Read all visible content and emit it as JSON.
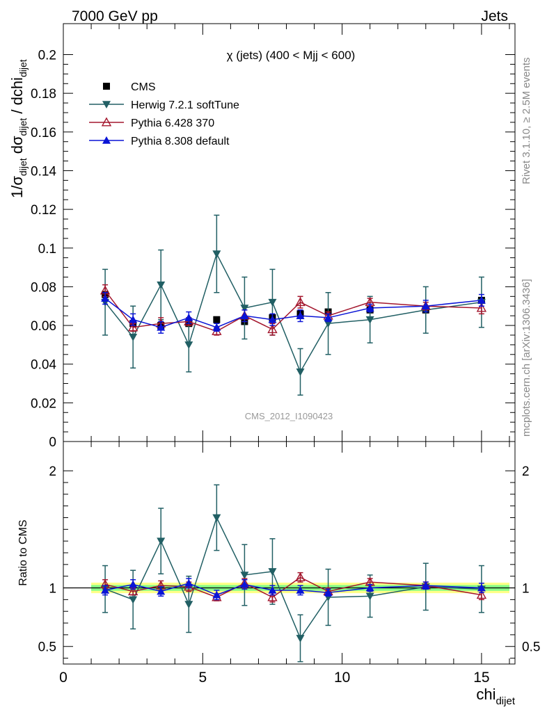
{
  "header": {
    "left": "7000 GeV pp",
    "right": "Jets"
  },
  "side_labels": {
    "top": "Rivet 3.1.10, ≥ 2.5M events",
    "bottom": "mcplots.cern.ch [arXiv:1306.3436]"
  },
  "chart_data": [
    {
      "type": "scatter",
      "title": "χ (jets) (400 < Mjj <  600)",
      "watermark": "CMS_2012_I1090423",
      "ylabel": {
        "prefix": "1/σ",
        "sub1": "dijet",
        "mid": " dσ",
        "sub2": "dijet",
        "suffix": " / dchi",
        "sub3": "dijet"
      },
      "xlim": [
        0,
        16.2
      ],
      "ylim": [
        0,
        0.216
      ],
      "yticks": [
        {
          "v": 0,
          "label": "0"
        },
        {
          "v": 0.02,
          "label": "0.02"
        },
        {
          "v": 0.04,
          "label": "0.04"
        },
        {
          "v": 0.06,
          "label": "0.06"
        },
        {
          "v": 0.08,
          "label": "0.08"
        },
        {
          "v": 0.1,
          "label": "0.1"
        },
        {
          "v": 0.12,
          "label": "0.12"
        },
        {
          "v": 0.14,
          "label": "0.14"
        },
        {
          "v": 0.16,
          "label": "0.16"
        },
        {
          "v": 0.18,
          "label": "0.18"
        },
        {
          "v": 0.2,
          "label": "0.2"
        }
      ],
      "x": [
        1.5,
        2.5,
        3.5,
        4.5,
        5.5,
        6.5,
        7.5,
        8.5,
        9.5,
        11,
        13,
        15
      ],
      "series": [
        {
          "name": "CMS",
          "marker": "square-filled",
          "color": "#000000",
          "line": false,
          "values": [
            0.076,
            0.061,
            0.06,
            0.061,
            0.063,
            0.062,
            0.064,
            0.066,
            0.067,
            0.068,
            0.068,
            0.073
          ],
          "err": [
            0,
            0,
            0,
            0,
            0,
            0,
            0,
            0,
            0,
            0,
            0,
            0
          ]
        },
        {
          "name": "Herwig 7.2.1 softTune",
          "marker": "triangle-down-filled",
          "color": "#215f64",
          "line": true,
          "values": [
            0.072,
            0.054,
            0.081,
            0.05,
            0.097,
            0.069,
            0.072,
            0.036,
            0.061,
            0.063,
            0.068,
            0.072
          ],
          "err": [
            0.017,
            0.016,
            0.018,
            0.014,
            0.02,
            0.016,
            0.017,
            0.012,
            0.016,
            0.012,
            0.012,
            0.013
          ]
        },
        {
          "name": "Pythia 6.428 370",
          "marker": "triangle-up-open",
          "color": "#a3162d",
          "line": true,
          "values": [
            0.078,
            0.059,
            0.061,
            0.062,
            0.057,
            0.065,
            0.058,
            0.072,
            0.065,
            0.072,
            0.07,
            0.069
          ],
          "err": [
            0.003,
            0.002,
            0.003,
            0.002,
            0.002,
            0.003,
            0.003,
            0.003,
            0.002,
            0.002,
            0.002,
            0.003
          ]
        },
        {
          "name": "Pythia 8.308 default",
          "marker": "triangle-up-filled",
          "color": "#0a14d6",
          "line": true,
          "values": [
            0.074,
            0.063,
            0.059,
            0.064,
            0.059,
            0.065,
            0.063,
            0.065,
            0.064,
            0.069,
            0.07,
            0.073
          ],
          "err": [
            0.003,
            0.003,
            0.003,
            0.003,
            0.002,
            0.003,
            0.003,
            0.003,
            0.002,
            0.002,
            0.003,
            0.003
          ]
        }
      ]
    },
    {
      "type": "scatter",
      "ylabel": "Ratio to CMS",
      "xlabel": {
        "main": "chi",
        "sub": "dijet"
      },
      "xlim": [
        0,
        16.2
      ],
      "ylim": [
        0.35,
        2.25
      ],
      "xticks": [
        {
          "v": 0,
          "label": "0"
        },
        {
          "v": 5,
          "label": "5"
        },
        {
          "v": 10,
          "label": "10"
        },
        {
          "v": 15,
          "label": "15"
        }
      ],
      "yticks": [
        {
          "v": 0.5,
          "label": "0.5"
        },
        {
          "v": 1,
          "label": "1"
        },
        {
          "v": 2,
          "label": "2"
        }
      ],
      "band": {
        "x": [
          1,
          16
        ],
        "outer": [
          0.955,
          1.045
        ],
        "inner": [
          0.975,
          1.025
        ],
        "outer_color": "#ffff88",
        "inner_color": "#88ff88"
      },
      "x": [
        1.5,
        2.5,
        3.5,
        4.5,
        5.5,
        6.5,
        7.5,
        8.5,
        9.5,
        11,
        13,
        15
      ],
      "series": [
        {
          "name": "Herwig 7.2.1 softTune",
          "marker": "triangle-down-filled",
          "color": "#215f64",
          "values": [
            0.99,
            0.9,
            1.4,
            0.86,
            1.6,
            1.11,
            1.14,
            0.57,
            0.92,
            0.93,
            1.01,
            0.99
          ],
          "err": [
            0.2,
            0.25,
            0.28,
            0.24,
            0.28,
            0.26,
            0.28,
            0.2,
            0.24,
            0.18,
            0.2,
            0.2
          ]
        },
        {
          "name": "Pythia 6.428 370",
          "marker": "triangle-up-open",
          "color": "#a3162d",
          "values": [
            1.03,
            0.97,
            1.02,
            1.01,
            0.92,
            1.04,
            0.92,
            1.09,
            0.97,
            1.05,
            1.02,
            0.94
          ],
          "err": [
            0.04,
            0.03,
            0.04,
            0.04,
            0.03,
            0.04,
            0.04,
            0.04,
            0.03,
            0.03,
            0.03,
            0.04
          ]
        },
        {
          "name": "Pythia 8.308 default",
          "marker": "triangle-up-filled",
          "color": "#0a14d6",
          "values": [
            0.98,
            1.03,
            0.97,
            1.04,
            0.94,
            1.03,
            0.98,
            0.98,
            0.96,
            1.0,
            1.02,
            1.0
          ],
          "err": [
            0.04,
            0.04,
            0.04,
            0.04,
            0.04,
            0.04,
            0.04,
            0.04,
            0.03,
            0.03,
            0.03,
            0.04
          ]
        }
      ]
    }
  ]
}
